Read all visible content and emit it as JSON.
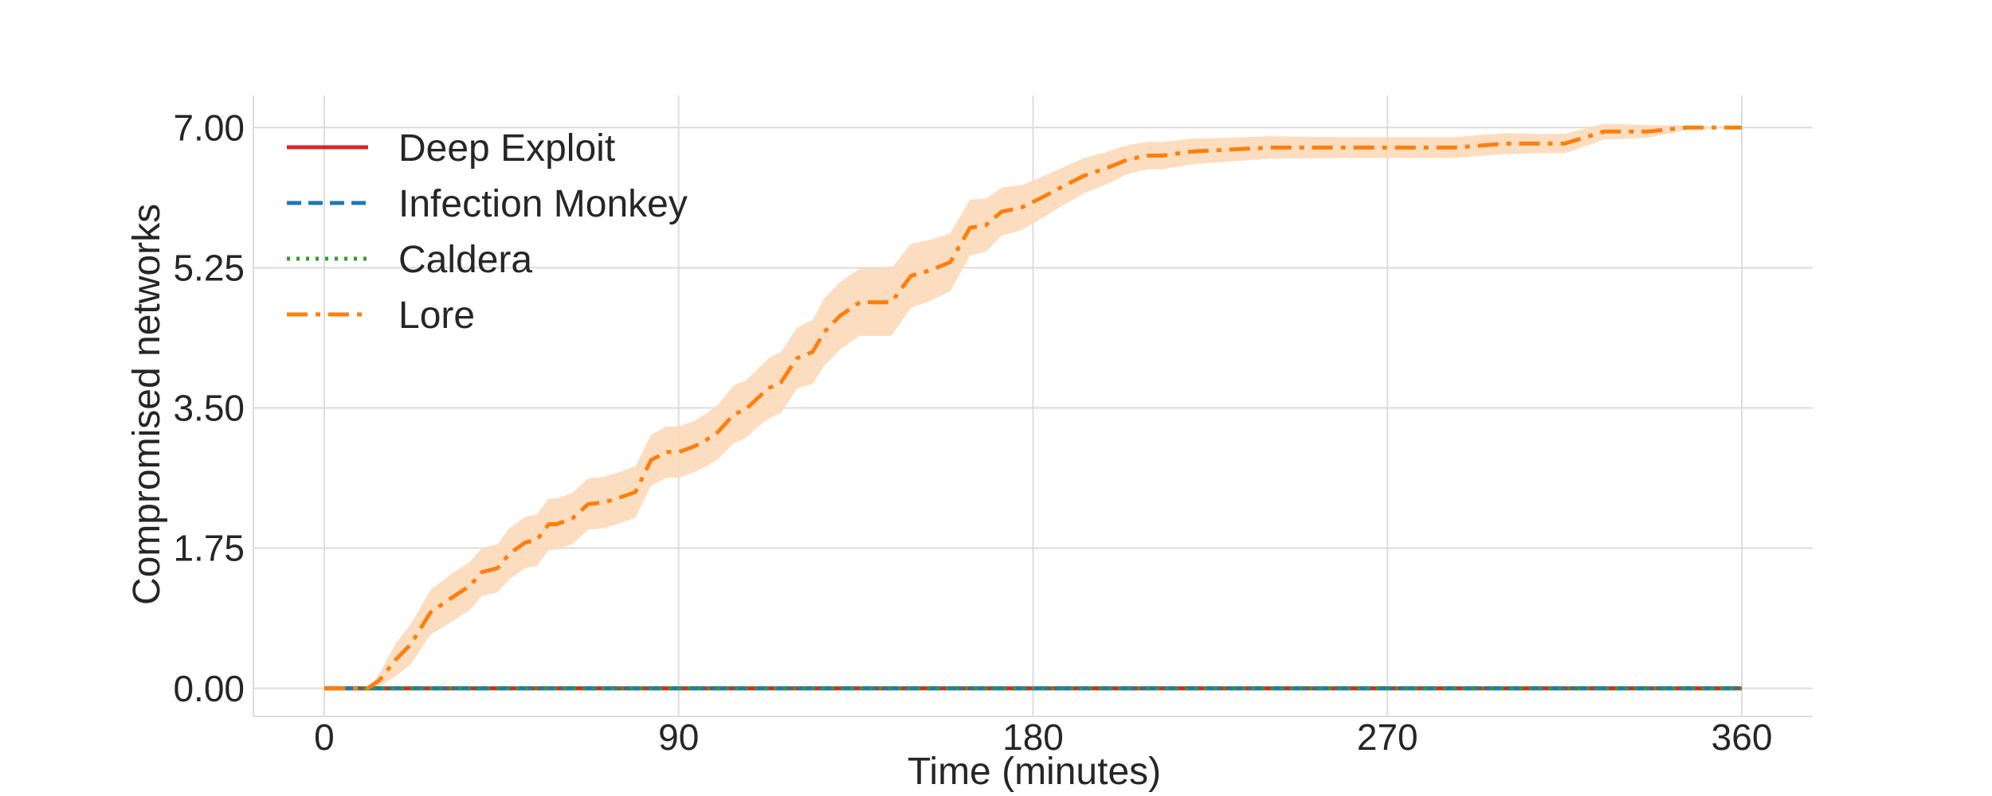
{
  "chart_data": {
    "type": "line",
    "title": "",
    "xlabel": "Time (minutes)",
    "ylabel": "Compromised networks",
    "xlim": [
      -18,
      378
    ],
    "ylim": [
      -0.35,
      7.4
    ],
    "xticks": [
      0,
      90,
      180,
      270,
      360
    ],
    "xtick_labels": [
      "0",
      "90",
      "180",
      "270",
      "360"
    ],
    "yticks": [
      0,
      1.75,
      3.5,
      5.25,
      7
    ],
    "ytick_labels": [
      "0.00",
      "1.75",
      "3.50",
      "5.25",
      "7.00"
    ],
    "grid": true,
    "legend_position": "top-left",
    "series": [
      {
        "name": "Deep Exploit",
        "color": "#d62728",
        "style": "solid",
        "x": [
          0,
          360
        ],
        "y": [
          0,
          0
        ]
      },
      {
        "name": "Infection Monkey",
        "color": "#1f77b4",
        "style": "dashed",
        "x": [
          0,
          360
        ],
        "y": [
          0,
          0
        ]
      },
      {
        "name": "Caldera",
        "color": "#2ca02c",
        "style": "dotted",
        "x": [
          0,
          360
        ],
        "y": [
          0,
          0
        ]
      },
      {
        "name": "Lore",
        "color": "#ff7f0e",
        "style": "dashdot",
        "band_color": "#fdd9b8",
        "x": [
          0,
          11,
          14,
          18,
          22,
          27,
          32,
          37,
          40,
          44,
          47,
          51,
          54,
          57,
          59,
          63,
          67,
          71,
          75,
          79,
          83,
          87,
          90,
          94,
          97,
          100,
          104,
          107,
          110,
          113,
          116,
          120,
          124,
          127,
          131,
          136,
          140,
          144,
          149,
          154,
          159,
          164,
          168,
          172,
          177,
          182,
          187,
          193,
          199,
          204,
          209,
          213,
          220,
          228,
          240,
          260,
          280,
          287,
          300,
          309,
          315,
          325,
          336,
          346,
          360
        ],
        "y": [
          0,
          0,
          0.1,
          0.35,
          0.55,
          0.95,
          1.12,
          1.28,
          1.45,
          1.5,
          1.68,
          1.82,
          1.85,
          2.05,
          2.05,
          2.12,
          2.3,
          2.32,
          2.38,
          2.45,
          2.85,
          2.95,
          2.95,
          3.02,
          3.1,
          3.2,
          3.42,
          3.48,
          3.62,
          3.75,
          3.82,
          4.12,
          4.2,
          4.45,
          4.65,
          4.82,
          4.82,
          4.82,
          5.15,
          5.22,
          5.32,
          5.75,
          5.78,
          5.95,
          6.0,
          6.12,
          6.25,
          6.4,
          6.5,
          6.6,
          6.65,
          6.65,
          6.7,
          6.72,
          6.75,
          6.75,
          6.75,
          6.75,
          6.8,
          6.8,
          6.8,
          6.95,
          6.95,
          7.0,
          7.0
        ],
        "band_half_width": [
          0,
          0,
          0.08,
          0.2,
          0.25,
          0.28,
          0.3,
          0.3,
          0.3,
          0.3,
          0.32,
          0.32,
          0.32,
          0.32,
          0.32,
          0.32,
          0.32,
          0.32,
          0.32,
          0.32,
          0.32,
          0.32,
          0.32,
          0.32,
          0.33,
          0.34,
          0.36,
          0.36,
          0.36,
          0.38,
          0.38,
          0.38,
          0.4,
          0.42,
          0.42,
          0.42,
          0.42,
          0.42,
          0.4,
          0.38,
          0.36,
          0.35,
          0.33,
          0.3,
          0.28,
          0.26,
          0.24,
          0.22,
          0.2,
          0.18,
          0.17,
          0.17,
          0.16,
          0.15,
          0.14,
          0.13,
          0.13,
          0.13,
          0.13,
          0.12,
          0.12,
          0.1,
          0.08,
          0.03,
          0
        ]
      }
    ]
  }
}
